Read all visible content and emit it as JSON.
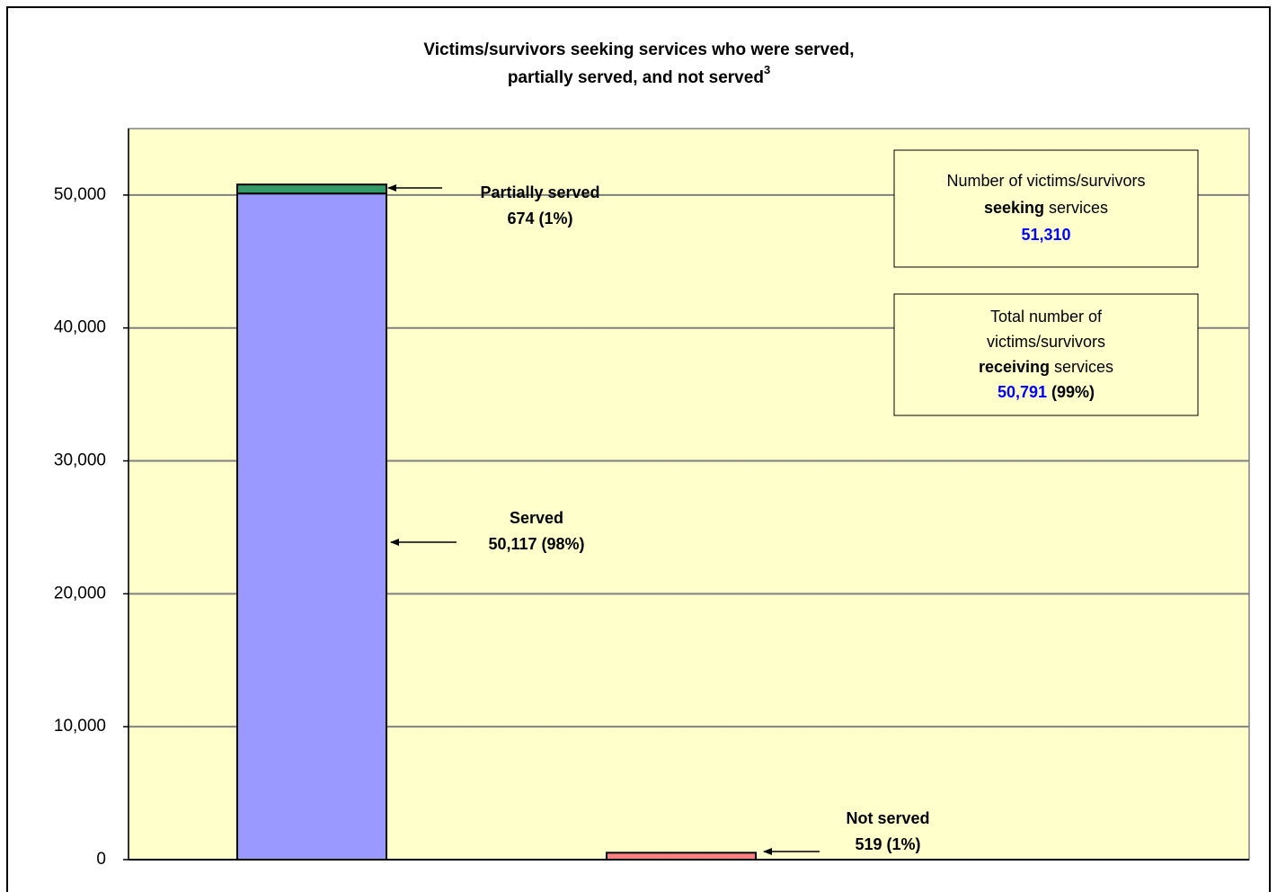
{
  "chart_data": {
    "type": "stacked-bar",
    "title": [
      "Victims/survivors seeking services who were served,",
      "partially served, and not served"
    ],
    "title_superscript": "3",
    "categories": [
      null,
      null
    ],
    "series": [
      {
        "name": "Served",
        "color": "#9999ff",
        "values": [
          50117,
          null
        ],
        "value_labels": [
          "50,117 (98%)",
          null
        ]
      },
      {
        "name": "Partially served",
        "color": "#339966",
        "values": [
          674,
          null
        ],
        "value_labels": [
          "674 (1%)",
          null
        ]
      },
      {
        "name": "Not served",
        "color": "#ff8080",
        "values": [
          null,
          519
        ],
        "value_labels": [
          null,
          "519 (1%)"
        ]
      }
    ],
    "ylim": [
      0,
      55000
    ],
    "yticks": [
      0,
      {
        "value": 10000,
        "label": "10,000"
      },
      {
        "value": 20000,
        "label": "20,000"
      },
      {
        "value": 30000,
        "label": "30,000"
      },
      {
        "value": 40000,
        "label": "40,000"
      },
      {
        "value": 50000,
        "label": "50,000"
      }
    ],
    "grid": true,
    "plot_background": "#ffffcc",
    "annotations": [
      {
        "lines": [
          [
            {
              "text": "Number of victims/survivors"
            }
          ],
          [
            {
              "text": "seeking",
              "weight": "bold"
            },
            {
              "text": " services"
            }
          ],
          [
            {
              "text": "51,310",
              "weight": "bold",
              "color": "#0000ff"
            }
          ]
        ]
      },
      {
        "lines": [
          [
            {
              "text": "Total number of"
            }
          ],
          [
            {
              "text": "victims/survivors"
            }
          ],
          [
            {
              "text": "receiving",
              "weight": "bold"
            },
            {
              "text": " services"
            }
          ],
          [
            {
              "text": "50,791",
              "weight": "bold",
              "color": "#0000ff"
            },
            {
              "text": " (99%)",
              "weight": "bold"
            }
          ]
        ]
      }
    ]
  }
}
